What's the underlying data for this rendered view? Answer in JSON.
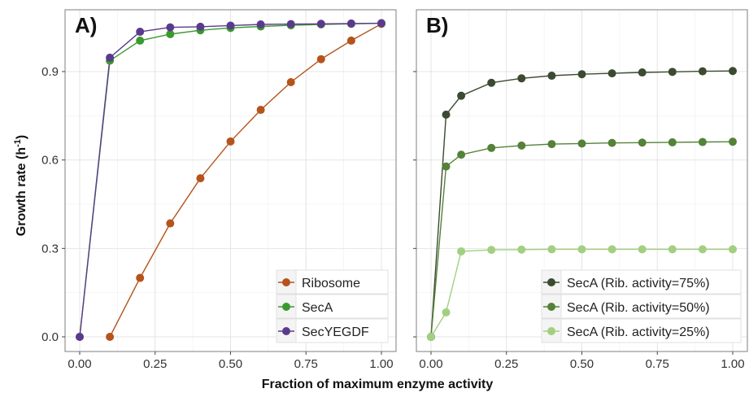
{
  "figure": {
    "ylabel_main": "Growth rate (h",
    "ylabel_sup": "-1",
    "ylabel_close": ")",
    "xlabel": "Fraction of maximum enzyme activity"
  },
  "chart_data": [
    {
      "type": "line",
      "panel_label": "A)",
      "xlim": [
        0,
        1
      ],
      "ylim": [
        0,
        1.06
      ],
      "x_ticks": [
        "0.00",
        "0.25",
        "0.50",
        "0.75",
        "1.00"
      ],
      "x_tick_values": [
        0,
        0.25,
        0.5,
        0.75,
        1.0
      ],
      "y_ticks": [
        "0.0",
        "0.3",
        "0.6",
        "0.9"
      ],
      "y_tick_values": [
        0,
        0.3,
        0.6,
        0.9
      ],
      "grid": true,
      "legend_position": "bottom-right",
      "series": [
        {
          "name": "Ribosome",
          "color": "#b5531b",
          "x": [
            0.1,
            0.2,
            0.3,
            0.4,
            0.5,
            0.6,
            0.7,
            0.8,
            0.9,
            1.0
          ],
          "y": [
            0.0,
            0.2,
            0.385,
            0.538,
            0.663,
            0.77,
            0.864,
            0.942,
            1.005,
            1.062
          ]
        },
        {
          "name": "SecA",
          "color": "#3a9a2e",
          "x": [
            0.0,
            0.1,
            0.2,
            0.3,
            0.4,
            0.5,
            0.6,
            0.7,
            0.8,
            0.9,
            1.0
          ],
          "y": [
            0.0,
            0.937,
            1.005,
            1.027,
            1.04,
            1.048,
            1.053,
            1.057,
            1.06,
            1.062,
            1.064
          ]
        },
        {
          "name": "SecYEGDF",
          "color": "#5b3a8e",
          "x": [
            0.0,
            0.1,
            0.2,
            0.3,
            0.4,
            0.5,
            0.6,
            0.7,
            0.8,
            0.9,
            1.0
          ],
          "y": [
            0.0,
            0.947,
            1.035,
            1.05,
            1.052,
            1.056,
            1.06,
            1.061,
            1.062,
            1.063,
            1.064
          ]
        }
      ]
    },
    {
      "type": "line",
      "panel_label": "B)",
      "xlim": [
        0,
        1
      ],
      "ylim": [
        0,
        1.06
      ],
      "x_ticks": [
        "0.00",
        "0.25",
        "0.50",
        "0.75",
        "1.00"
      ],
      "x_tick_values": [
        0,
        0.25,
        0.5,
        0.75,
        1.0
      ],
      "y_tick_values": [
        0,
        0.3,
        0.6,
        0.9
      ],
      "grid": true,
      "legend_position": "bottom-right",
      "series": [
        {
          "name": "SecA (Rib. activity=75%)",
          "color": "#3b4a30",
          "x": [
            0.0,
            0.05,
            0.1,
            0.2,
            0.3,
            0.4,
            0.5,
            0.6,
            0.7,
            0.8,
            0.9,
            1.0
          ],
          "y": [
            0.0,
            0.754,
            0.818,
            0.862,
            0.877,
            0.886,
            0.891,
            0.894,
            0.897,
            0.899,
            0.901,
            0.902
          ]
        },
        {
          "name": "SecA (Rib. activity=50%)",
          "color": "#548238",
          "x": [
            0.0,
            0.05,
            0.1,
            0.2,
            0.3,
            0.4,
            0.5,
            0.6,
            0.7,
            0.8,
            0.9,
            1.0
          ],
          "y": [
            0.0,
            0.578,
            0.618,
            0.641,
            0.649,
            0.654,
            0.656,
            0.658,
            0.659,
            0.66,
            0.661,
            0.662
          ]
        },
        {
          "name": "SecA (Rib. activity=25%)",
          "color": "#a3cf80",
          "x": [
            0.0,
            0.05,
            0.1,
            0.2,
            0.3,
            0.4,
            0.5,
            0.6,
            0.7,
            0.8,
            0.9,
            1.0
          ],
          "y": [
            0.0,
            0.083,
            0.29,
            0.295,
            0.296,
            0.297,
            0.297,
            0.297,
            0.297,
            0.297,
            0.297,
            0.297
          ]
        }
      ]
    }
  ]
}
